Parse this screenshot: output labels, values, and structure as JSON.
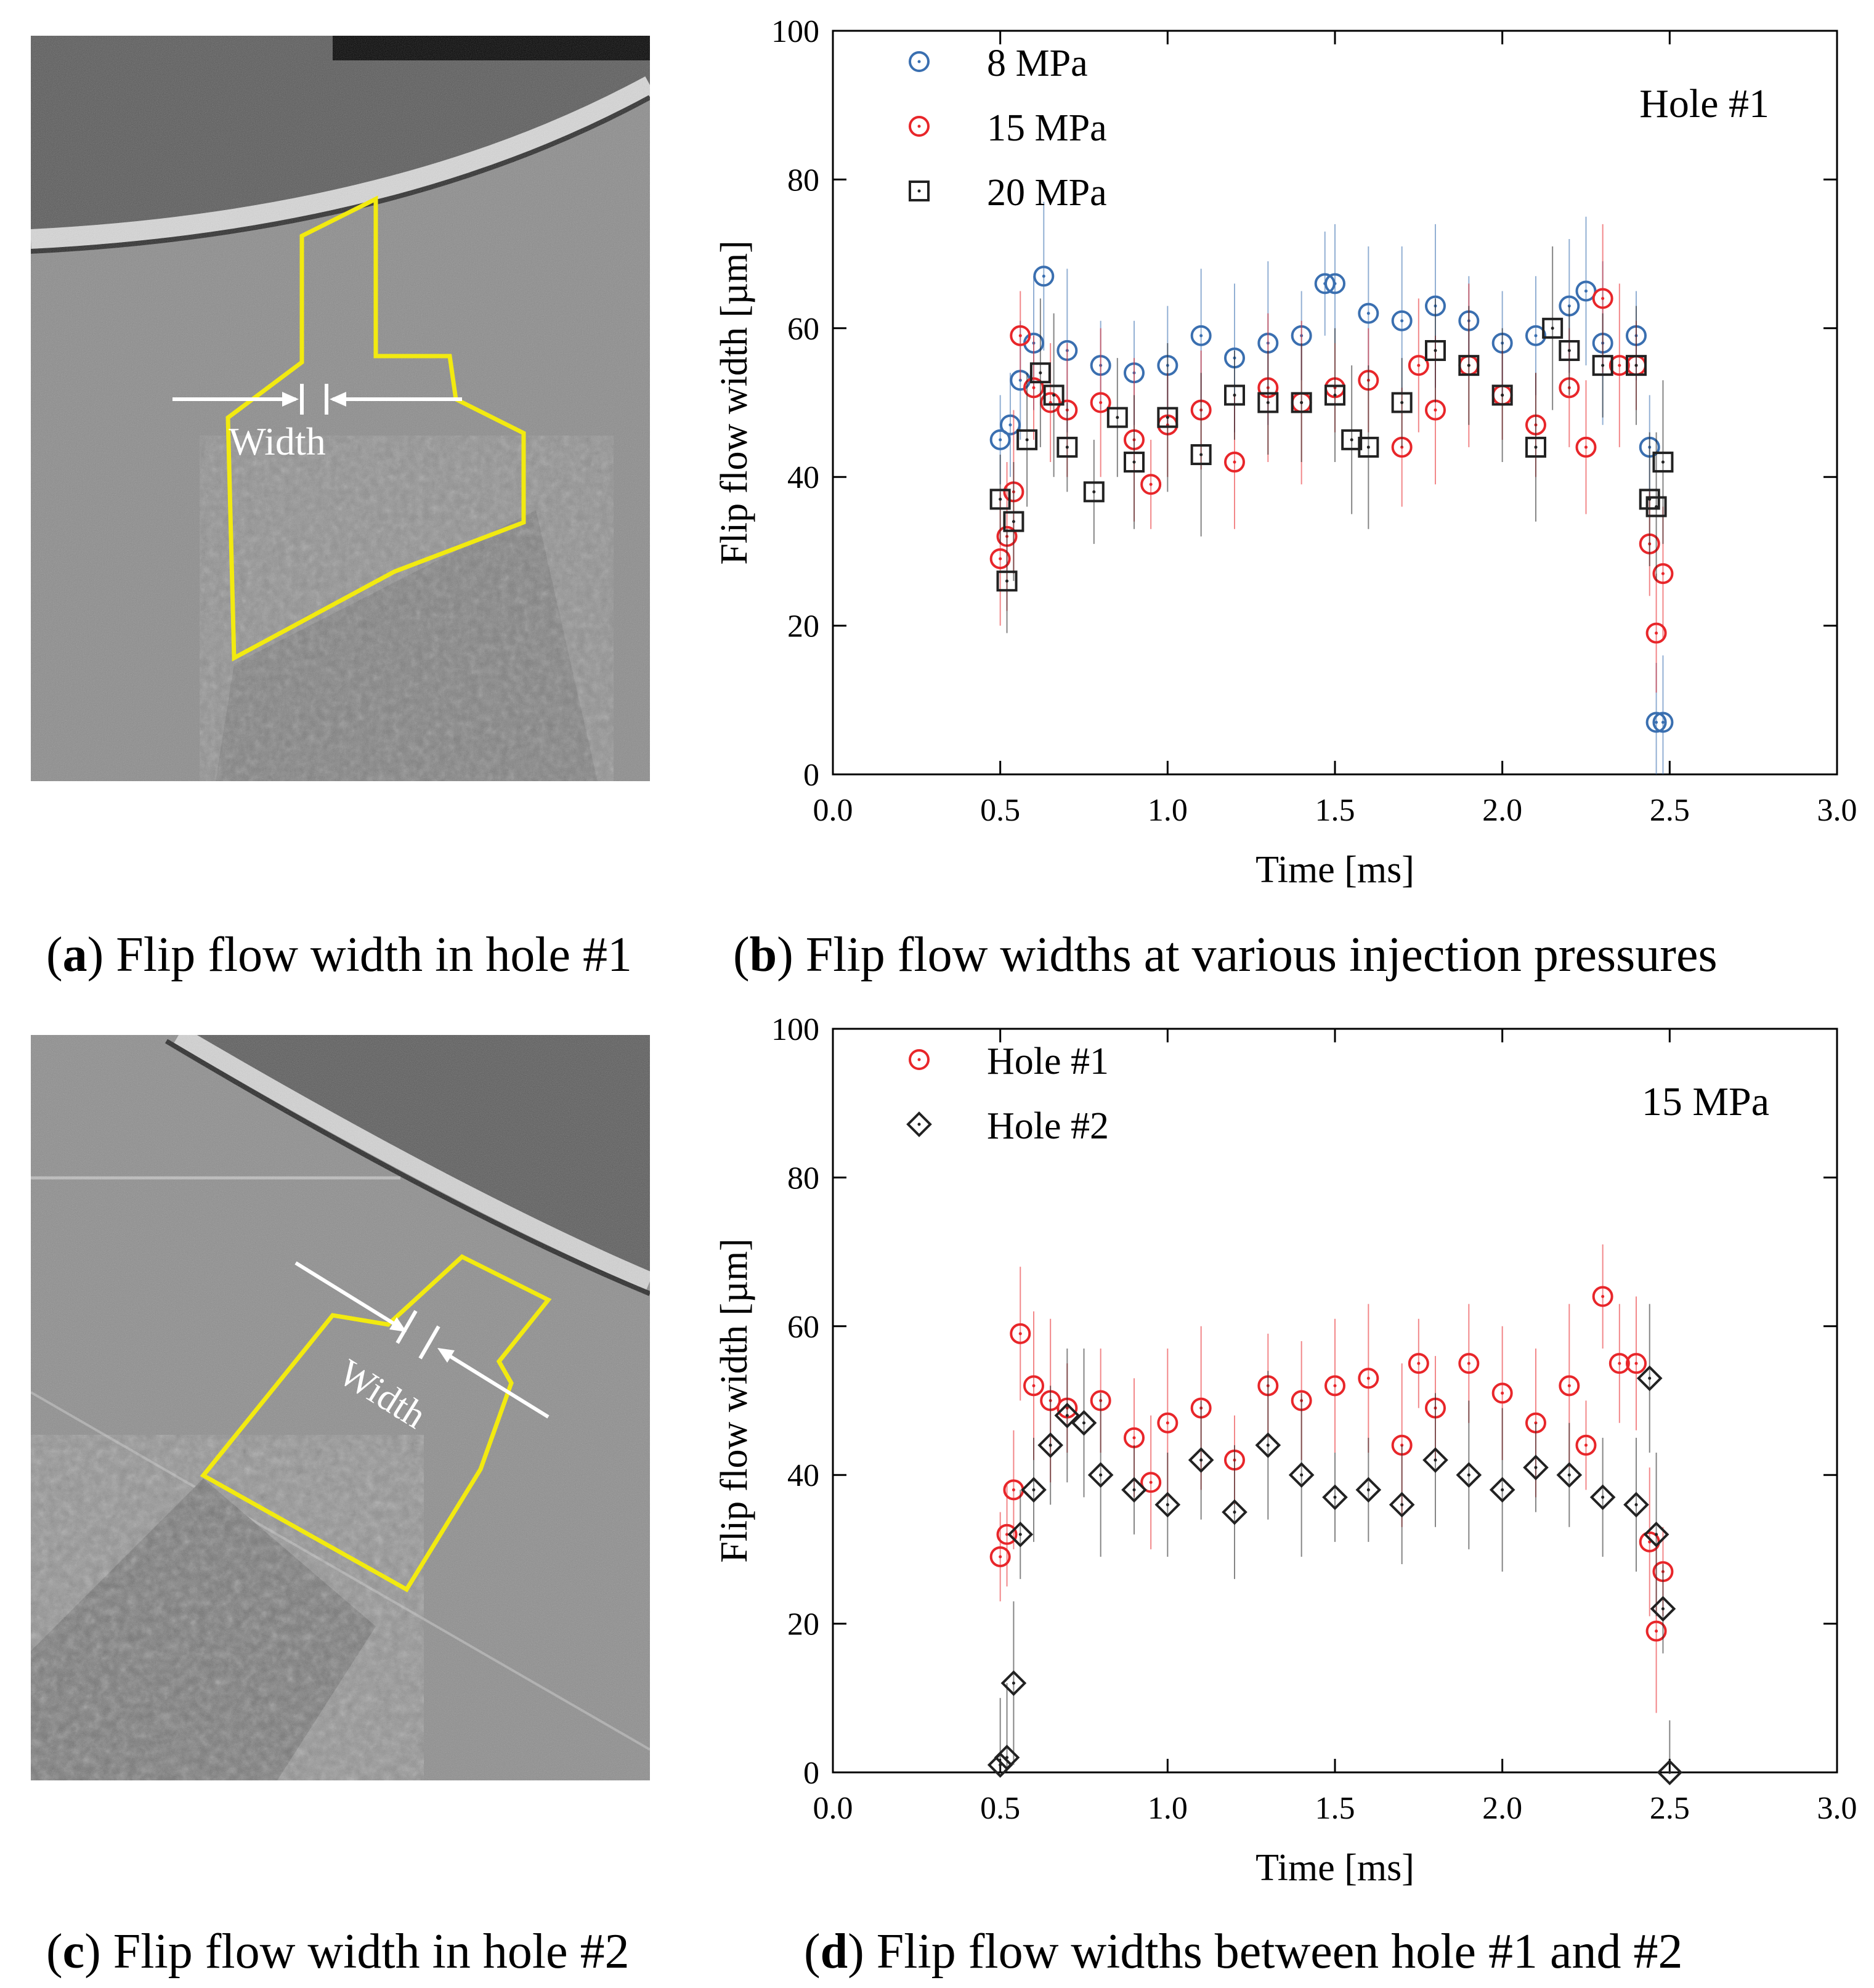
{
  "panels": {
    "a": {
      "letter": "a",
      "caption": "Flip flow width in hole #1",
      "width_label": "Width"
    },
    "b": {
      "letter": "b",
      "caption": "Flip flow widths at various injection pressures"
    },
    "c": {
      "letter": "c",
      "caption": "Flip flow width in hole #2",
      "width_label": "Width"
    },
    "d": {
      "letter": "d",
      "caption": "Flip flow widths between hole #1 and #2"
    }
  },
  "colors": {
    "blue": "#3a6fb0",
    "red": "#e8262a",
    "black": "#222222",
    "yellow": "#f2ea10"
  },
  "chart_data": [
    {
      "type": "scatter",
      "title": "Hole #1",
      "xlabel": "Time [ms]",
      "ylabel": "Flip flow width [µm]",
      "xlim": [
        0,
        3
      ],
      "ylim": [
        0,
        100
      ],
      "xticks": [
        "0.0",
        "0.5",
        "1.0",
        "1.5",
        "2.0",
        "2.5",
        "3.0"
      ],
      "yticks": [
        "0",
        "20",
        "40",
        "60",
        "80",
        "100"
      ],
      "legend_position": "top-left",
      "series": [
        {
          "name": "8 MPa",
          "marker": "circle",
          "color": "#3a6fb0",
          "x": [
            0.5,
            0.53,
            0.56,
            0.6,
            0.63,
            0.7,
            0.8,
            0.9,
            1.0,
            1.1,
            1.2,
            1.3,
            1.4,
            1.47,
            1.5,
            1.6,
            1.7,
            1.8,
            1.9,
            2.0,
            2.1,
            2.2,
            2.25,
            2.3,
            2.4,
            2.44,
            2.46,
            2.48
          ],
          "y": [
            45,
            47,
            53,
            58,
            67,
            57,
            55,
            54,
            55,
            59,
            56,
            58,
            59,
            66,
            66,
            62,
            61,
            63,
            61,
            58,
            59,
            63,
            65,
            58,
            59,
            44,
            7,
            7
          ]
        },
        {
          "name": "15 MPa",
          "marker": "circle",
          "color": "#e8262a",
          "x": [
            0.5,
            0.52,
            0.54,
            0.56,
            0.6,
            0.65,
            0.7,
            0.8,
            0.9,
            0.95,
            1.0,
            1.1,
            1.2,
            1.3,
            1.4,
            1.5,
            1.6,
            1.7,
            1.75,
            1.8,
            1.9,
            2.0,
            2.1,
            2.2,
            2.25,
            2.3,
            2.35,
            2.4,
            2.44,
            2.46,
            2.48
          ],
          "y": [
            29,
            32,
            38,
            59,
            52,
            50,
            49,
            50,
            45,
            39,
            47,
            49,
            42,
            52,
            50,
            52,
            53,
            44,
            55,
            49,
            55,
            51,
            47,
            52,
            44,
            64,
            55,
            55,
            31,
            19,
            27
          ]
        },
        {
          "name": "20 MPa",
          "marker": "square",
          "color": "#222222",
          "x": [
            0.5,
            0.52,
            0.54,
            0.58,
            0.62,
            0.66,
            0.7,
            0.78,
            0.85,
            0.9,
            1.0,
            1.1,
            1.2,
            1.3,
            1.4,
            1.5,
            1.55,
            1.6,
            1.7,
            1.8,
            1.9,
            2.0,
            2.1,
            2.15,
            2.2,
            2.3,
            2.4,
            2.44,
            2.46,
            2.48
          ],
          "y": [
            37,
            26,
            34,
            45,
            54,
            51,
            44,
            38,
            48,
            42,
            48,
            43,
            51,
            50,
            50,
            51,
            45,
            44,
            50,
            57,
            55,
            51,
            44,
            60,
            57,
            55,
            55,
            37,
            36,
            42
          ]
        }
      ]
    },
    {
      "type": "scatter",
      "title": "15 MPa",
      "xlabel": "Time [ms]",
      "ylabel": "Flip flow width [µm]",
      "xlim": [
        0,
        3
      ],
      "ylim": [
        0,
        100
      ],
      "xticks": [
        "0.0",
        "0.5",
        "1.0",
        "1.5",
        "2.0",
        "2.5",
        "3.0"
      ],
      "yticks": [
        "0",
        "20",
        "40",
        "60",
        "80",
        "100"
      ],
      "legend_position": "top-left",
      "series": [
        {
          "name": "Hole #1",
          "marker": "circle",
          "color": "#e8262a",
          "x": [
            0.5,
            0.52,
            0.54,
            0.56,
            0.6,
            0.65,
            0.7,
            0.8,
            0.9,
            0.95,
            1.0,
            1.1,
            1.2,
            1.3,
            1.4,
            1.5,
            1.6,
            1.7,
            1.75,
            1.8,
            1.9,
            2.0,
            2.1,
            2.2,
            2.25,
            2.3,
            2.35,
            2.4,
            2.44,
            2.46,
            2.48
          ],
          "y": [
            29,
            32,
            38,
            59,
            52,
            50,
            49,
            50,
            45,
            39,
            47,
            49,
            42,
            52,
            50,
            52,
            53,
            44,
            55,
            49,
            55,
            51,
            47,
            52,
            44,
            64,
            55,
            55,
            31,
            19,
            27
          ]
        },
        {
          "name": "Hole #2",
          "marker": "diamond",
          "color": "#222222",
          "x": [
            0.5,
            0.52,
            0.54,
            0.56,
            0.6,
            0.65,
            0.7,
            0.75,
            0.8,
            0.9,
            1.0,
            1.1,
            1.2,
            1.3,
            1.4,
            1.5,
            1.6,
            1.7,
            1.8,
            1.9,
            2.0,
            2.1,
            2.2,
            2.3,
            2.4,
            2.44,
            2.46,
            2.48,
            2.5
          ],
          "y": [
            1,
            2,
            12,
            32,
            38,
            44,
            48,
            47,
            40,
            38,
            36,
            42,
            35,
            44,
            40,
            37,
            38,
            36,
            42,
            40,
            38,
            41,
            40,
            37,
            36,
            53,
            32,
            22,
            0
          ]
        }
      ]
    }
  ]
}
